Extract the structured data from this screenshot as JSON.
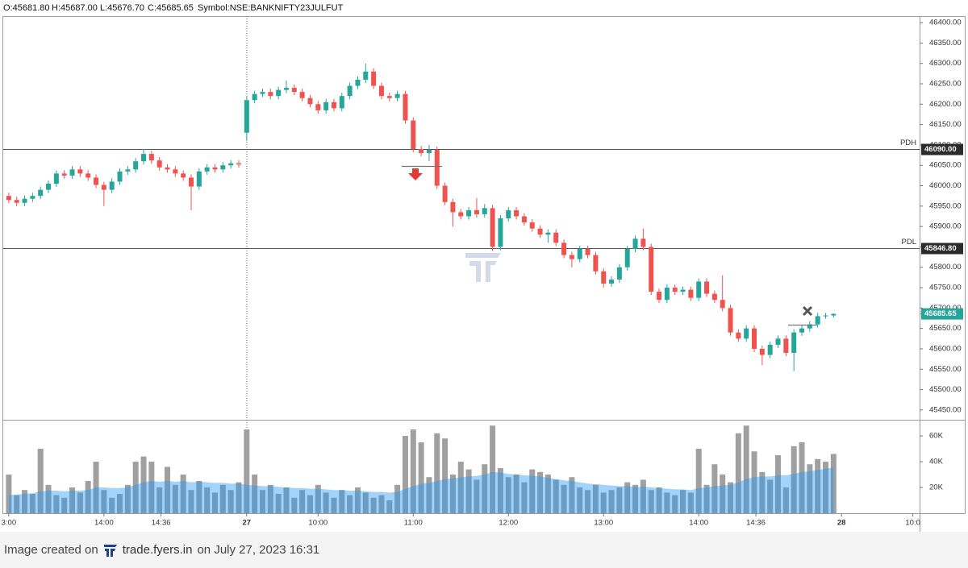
{
  "header": [
    "O:45681.80",
    "H:45687.00",
    "L:45676.70",
    "C:45685.65",
    "Symbol:NSE:BANKNIFTY23JULFUT"
  ],
  "footer": {
    "prefix": "Image created on",
    "site": "trade.fyers.in",
    "suffix": "on July 27, 2023 16:31"
  },
  "chart_data": {
    "type": "candlestick",
    "up_color": "#26a69a",
    "down_color": "#ef5350",
    "open": [
      45975,
      45965,
      45958,
      45968,
      45975,
      45990,
      46005,
      46030,
      46025,
      46040,
      46030,
      46020,
      46002,
      45990,
      46010,
      46035,
      46040,
      46060,
      46078,
      46062,
      46045,
      46040,
      46030,
      46020,
      45998,
      46035,
      46045,
      46040,
      46050,
      46055,
      46130,
      46210,
      46225,
      46230,
      46220,
      46235,
      46240,
      46230,
      46215,
      46200,
      46185,
      46205,
      46190,
      46220,
      46245,
      46260,
      46280,
      46245,
      46220,
      46215,
      46225,
      46160,
      46090,
      46080,
      46088,
      46000,
      45960,
      45935,
      45925,
      45940,
      45930,
      45945,
      45850,
      45920,
      45940,
      45925,
      45910,
      45895,
      45880,
      45885,
      45860,
      45830,
      45820,
      45845,
      45830,
      45790,
      45760,
      45770,
      45800,
      45845,
      45870,
      45850,
      45740,
      45720,
      45750,
      45740,
      45745,
      45725,
      45765,
      45735,
      45720,
      45700,
      45640,
      45625,
      45650,
      45600,
      45585,
      45610,
      45625,
      45590,
      45640,
      45650,
      45660,
      45680,
      45681.8
    ],
    "high": [
      45983,
      45973,
      45976,
      45983,
      45998,
      46013,
      46038,
      46038,
      46048,
      46048,
      46038,
      46028,
      46010,
      46018,
      46043,
      46048,
      46068,
      46090,
      46086,
      46070,
      46053,
      46048,
      46038,
      46028,
      46043,
      46053,
      46053,
      46058,
      46063,
      46063,
      46218,
      46233,
      46238,
      46238,
      46243,
      46258,
      46248,
      46238,
      46223,
      46208,
      46213,
      46213,
      46228,
      46253,
      46268,
      46300,
      46288,
      46253,
      46228,
      46233,
      46233,
      46168,
      46098,
      46100,
      46096,
      46008,
      45968,
      45943,
      45948,
      45970,
      45955,
      45953,
      45928,
      45948,
      45948,
      45933,
      45918,
      45903,
      45893,
      45893,
      45868,
      45838,
      45853,
      45853,
      45838,
      45798,
      45778,
      45808,
      45853,
      45878,
      45895,
      45858,
      45748,
      45758,
      45758,
      45753,
      45753,
      45773,
      45773,
      45743,
      45780,
      45708,
      45648,
      45658,
      45658,
      45608,
      45618,
      45633,
      45633,
      45648,
      45658,
      45668,
      45688,
      45688,
      45687
    ],
    "low": [
      45957,
      45950,
      45950,
      45960,
      45967,
      45982,
      45997,
      46017,
      46017,
      46022,
      46012,
      45994,
      45950,
      45982,
      46002,
      46027,
      46032,
      46052,
      46054,
      46037,
      46032,
      46022,
      46012,
      45940,
      45990,
      46027,
      46032,
      46032,
      46042,
      46044,
      46110,
      46202,
      46217,
      46212,
      46212,
      46227,
      46222,
      46207,
      46192,
      46177,
      46177,
      46182,
      46182,
      46212,
      46237,
      46252,
      46237,
      46212,
      46207,
      46207,
      46152,
      46082,
      46072,
      46060,
      45992,
      45952,
      45900,
      45917,
      45917,
      45922,
      45922,
      45840,
      45842,
      45912,
      45917,
      45902,
      45887,
      45872,
      45860,
      45852,
      45822,
      45800,
      45812,
      45822,
      45782,
      45750,
      45752,
      45762,
      45792,
      45837,
      45842,
      45732,
      45712,
      45712,
      45732,
      45732,
      45717,
      45717,
      45727,
      45712,
      45692,
      45632,
      45617,
      45617,
      45592,
      45560,
      45577,
      45602,
      45582,
      45545,
      45632,
      45642,
      45652,
      45674,
      45676.7
    ],
    "close": [
      45965,
      45958,
      45968,
      45975,
      45990,
      46005,
      46030,
      46025,
      46040,
      46030,
      46020,
      46002,
      45990,
      46010,
      46035,
      46040,
      46060,
      46078,
      46062,
      46045,
      46040,
      46030,
      46020,
      45998,
      46035,
      46045,
      46040,
      46050,
      46055,
      46052,
      46210,
      46225,
      46230,
      46220,
      46235,
      46240,
      46230,
      46215,
      46200,
      46185,
      46205,
      46190,
      46220,
      46245,
      46260,
      46280,
      46245,
      46220,
      46215,
      46225,
      46160,
      46090,
      46080,
      46088,
      46000,
      45960,
      45935,
      45925,
      45940,
      45930,
      45945,
      45850,
      45920,
      45940,
      45925,
      45910,
      45895,
      45880,
      45885,
      45860,
      45830,
      45820,
      45845,
      45830,
      45790,
      45760,
      45770,
      45800,
      45845,
      45870,
      45850,
      45740,
      45720,
      45750,
      45740,
      45745,
      45725,
      45765,
      45735,
      45720,
      45700,
      45640,
      45625,
      45650,
      45600,
      45585,
      45610,
      45625,
      45590,
      45640,
      45650,
      45660,
      45680,
      45681.8,
      45685.65
    ],
    "volume": {
      "color": "#a0a0a0",
      "values": [
        30000,
        14000,
        18000,
        15000,
        50000,
        22000,
        14000,
        12000,
        20000,
        16000,
        25000,
        40000,
        18000,
        12000,
        15000,
        22000,
        40000,
        44000,
        40000,
        20000,
        36000,
        22000,
        30000,
        18000,
        25000,
        20000,
        16000,
        22000,
        18000,
        24000,
        65000,
        30000,
        18000,
        22000,
        15000,
        20000,
        12000,
        18000,
        14000,
        22000,
        16000,
        12000,
        18000,
        14000,
        20000,
        16000,
        12000,
        14000,
        10000,
        22000,
        60000,
        65000,
        55000,
        28000,
        62000,
        58000,
        30000,
        40000,
        34000,
        26000,
        38000,
        68000,
        35000,
        28000,
        30000,
        24000,
        34000,
        32000,
        30000,
        26000,
        22000,
        28000,
        20000,
        18000,
        22000,
        16000,
        18000,
        20000,
        24000,
        22000,
        26000,
        18000,
        20000,
        16000,
        14000,
        18000,
        16000,
        50000,
        22000,
        38000,
        30000,
        24000,
        62000,
        68000,
        48000,
        32000,
        26000,
        45000,
        20000,
        52000,
        55000,
        38000,
        42000,
        40000,
        46000
      ]
    },
    "volume_ma": {
      "color": "#2196f3",
      "values": [
        14000,
        14500,
        15000,
        15500,
        17000,
        17500,
        17500,
        17000,
        17500,
        17500,
        18000,
        20000,
        20000,
        19500,
        19500,
        20000,
        22000,
        24000,
        25000,
        24500,
        25000,
        24500,
        25000,
        24000,
        24500,
        24000,
        23500,
        23500,
        23000,
        23000,
        22000,
        21500,
        21000,
        21000,
        20500,
        20000,
        19500,
        19500,
        19000,
        19000,
        18500,
        18000,
        18000,
        17500,
        17500,
        17000,
        16500,
        16500,
        16000,
        16500,
        19000,
        21000,
        23000,
        23500,
        25000,
        26500,
        27000,
        28000,
        28500,
        29000,
        30000,
        32000,
        31500,
        30500,
        30000,
        29500,
        29000,
        28500,
        27500,
        26500,
        25500,
        25000,
        24000,
        23000,
        22500,
        22000,
        21500,
        21000,
        21000,
        20500,
        20500,
        20000,
        19500,
        19000,
        18500,
        18500,
        18000,
        19500,
        20000,
        21000,
        21500,
        22000,
        24000,
        26500,
        28000,
        28500,
        28500,
        29500,
        29500,
        30500,
        32000,
        32500,
        33500,
        34500,
        35500
      ]
    },
    "xlim": [
      -0.7,
      114.85
    ],
    "xticks": [
      {
        "value": 0,
        "label": "3:00"
      },
      {
        "value": 12,
        "label": "14:00"
      },
      {
        "value": 19.2,
        "label": "14:36"
      },
      {
        "value": 30,
        "label": "27"
      },
      {
        "value": 39,
        "label": "10:00"
      },
      {
        "value": 51,
        "label": "11:00"
      },
      {
        "value": 63,
        "label": "12:00"
      },
      {
        "value": 75,
        "label": "13:00"
      },
      {
        "value": 87,
        "label": "14:00"
      },
      {
        "value": 94.2,
        "label": "14:36"
      },
      {
        "value": 105,
        "label": "28"
      },
      {
        "value": 114,
        "label": "10:0"
      }
    ],
    "ylim": [
      45426,
      46416
    ],
    "yticks": [
      {
        "value": 45450,
        "label": "45450.00"
      },
      {
        "value": 45500,
        "label": "45500.00"
      },
      {
        "value": 45550,
        "label": "45550.00"
      },
      {
        "value": 45600,
        "label": "45600.00"
      },
      {
        "value": 45650,
        "label": "45650.00"
      },
      {
        "value": 45700,
        "label": "45700.00"
      },
      {
        "value": 45750,
        "label": "45750.00"
      },
      {
        "value": 45800,
        "label": "45800.00"
      },
      {
        "value": 45850,
        "label": "45850.00"
      },
      {
        "value": 45900,
        "label": "45900.00"
      },
      {
        "value": 45950,
        "label": "45950.00"
      },
      {
        "value": 46000,
        "label": "46000.00"
      },
      {
        "value": 46050,
        "label": "46050.00"
      },
      {
        "value": 46100,
        "label": "46100.00"
      },
      {
        "value": 46150,
        "label": "46150.00"
      },
      {
        "value": 46200,
        "label": "46200.00"
      },
      {
        "value": 46250,
        "label": "46250.00"
      },
      {
        "value": 46300,
        "label": "46300.00"
      },
      {
        "value": 46350,
        "label": "46350.00"
      },
      {
        "value": 46400,
        "label": "46400.00"
      }
    ],
    "levels": [
      {
        "name": "PDH",
        "value": 46090,
        "label": "46090.00"
      },
      {
        "name": "PDL",
        "value": 45846.8,
        "label": "45846.80"
      }
    ],
    "vlim": [
      0,
      71900
    ],
    "vticks": [
      {
        "value": 20000,
        "label": "20K"
      },
      {
        "value": 40000,
        "label": "40K"
      },
      {
        "value": 60000,
        "label": "60K"
      }
    ]
  }
}
